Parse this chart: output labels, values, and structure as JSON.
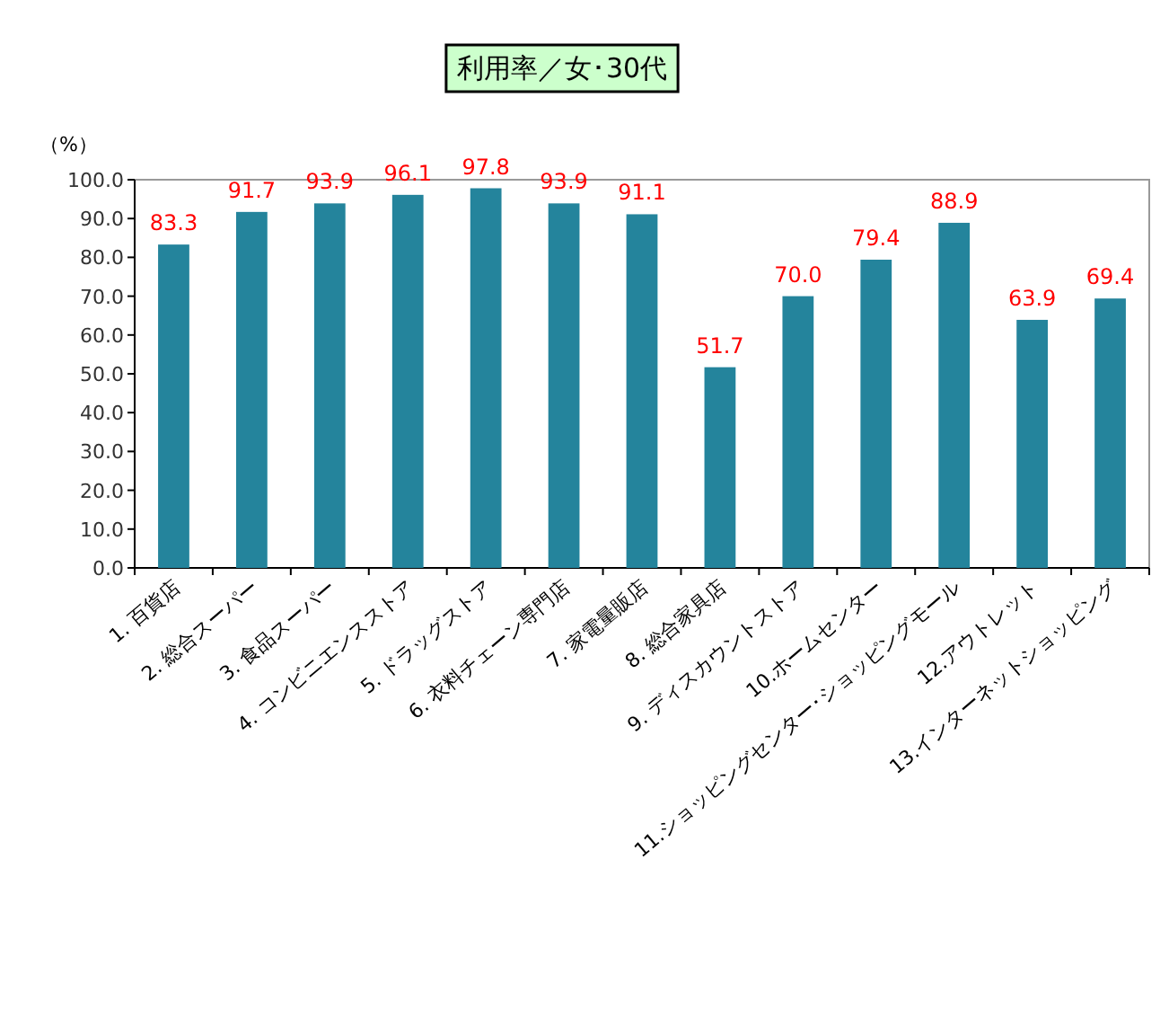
{
  "chart_data": {
    "type": "bar",
    "title": "利用率／女･30代",
    "ylabel": "（%）",
    "categories": [
      "1. 百貨店",
      "2. 総合スーパー",
      "3. 食品スーパー",
      "4. コンビニエンスストア",
      "5. ドラッグストア",
      "6. 衣料チェーン専門店",
      "7. 家電量販店",
      "8. 総合家具店",
      "9. ディスカウントストア",
      "10.ホームセンター",
      "11.ショッピングセンター･ショッピングモール",
      "12.アウトレット",
      "13.インターネットショッピング"
    ],
    "values": [
      83.3,
      91.7,
      93.9,
      96.1,
      97.8,
      93.9,
      91.1,
      51.7,
      70.0,
      79.4,
      88.9,
      63.9,
      69.4
    ],
    "value_labels": [
      "83.3",
      "91.7",
      "93.9",
      "96.1",
      "97.8",
      "93.9",
      "91.1",
      "51.7",
      "70.0",
      "79.4",
      "88.9",
      "63.9",
      "69.4"
    ],
    "color": "#24849c",
    "ylim": [
      0,
      100
    ],
    "yticks": [
      {
        "value": 0,
        "label": "0.0"
      },
      {
        "value": 10,
        "label": "10.0"
      },
      {
        "value": 20,
        "label": "20.0"
      },
      {
        "value": 30,
        "label": "30.0"
      },
      {
        "value": 40,
        "label": "40.0"
      },
      {
        "value": 50,
        "label": "50.0"
      },
      {
        "value": 60,
        "label": "60.0"
      },
      {
        "value": 70,
        "label": "70.0"
      },
      {
        "value": 80,
        "label": "80.0"
      },
      {
        "value": 90,
        "label": "90.0"
      },
      {
        "value": 100,
        "label": "100.0"
      }
    ]
  }
}
